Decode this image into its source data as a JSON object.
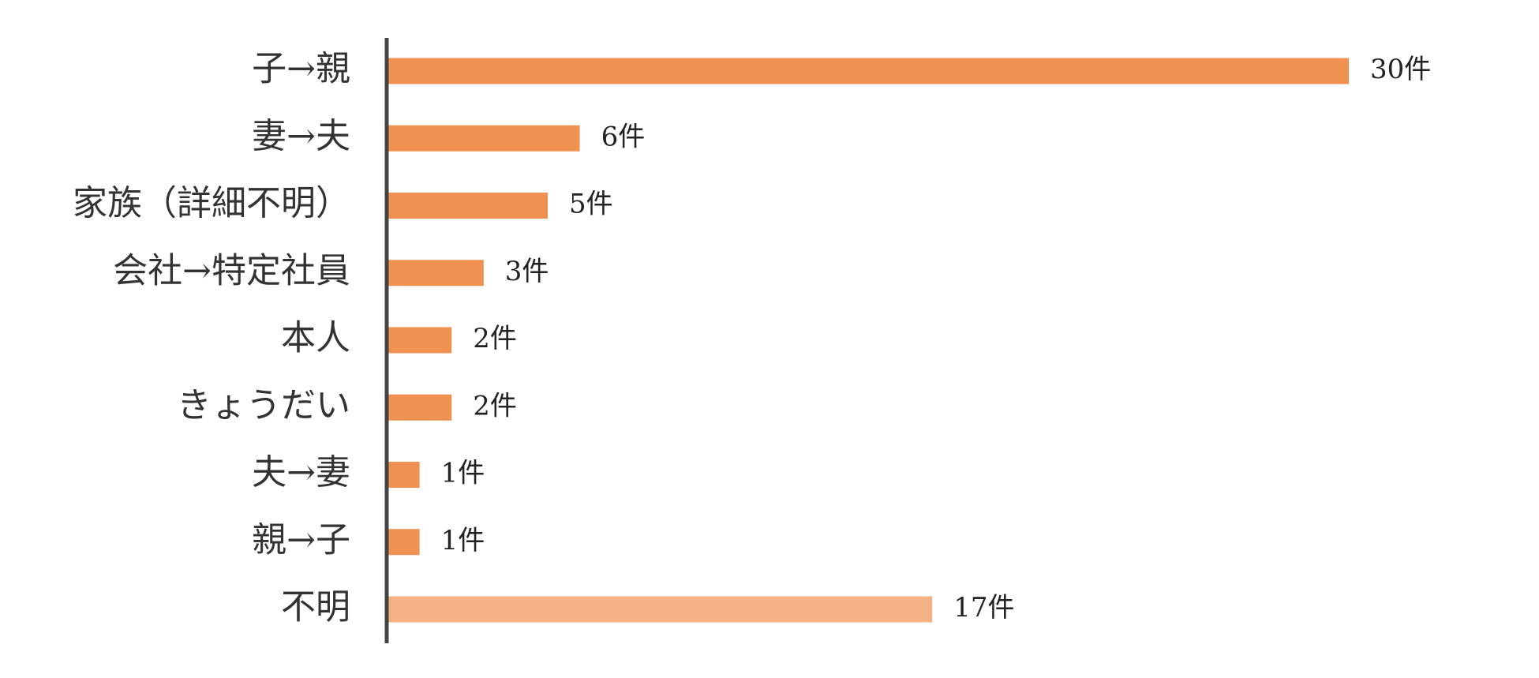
{
  "chart_data": {
    "type": "bar",
    "orientation": "horizontal",
    "categories": [
      "子→親",
      "妻→夫",
      "家族（詳細不明）",
      "会社→特定社員",
      "本人",
      "きょうだい",
      "夫→妻",
      "親→子",
      "不明"
    ],
    "values": [
      30,
      6,
      5,
      3,
      2,
      2,
      1,
      1,
      17
    ],
    "value_labels": [
      "30件",
      "6件",
      "5件",
      "3件",
      "2件",
      "2件",
      "1件",
      "1件",
      "17件"
    ],
    "colors": [
      "#ef9150",
      "#ef9150",
      "#ef9150",
      "#ef9150",
      "#ef9150",
      "#ef9150",
      "#ef9150",
      "#ef9150",
      "#f4b183"
    ]
  }
}
